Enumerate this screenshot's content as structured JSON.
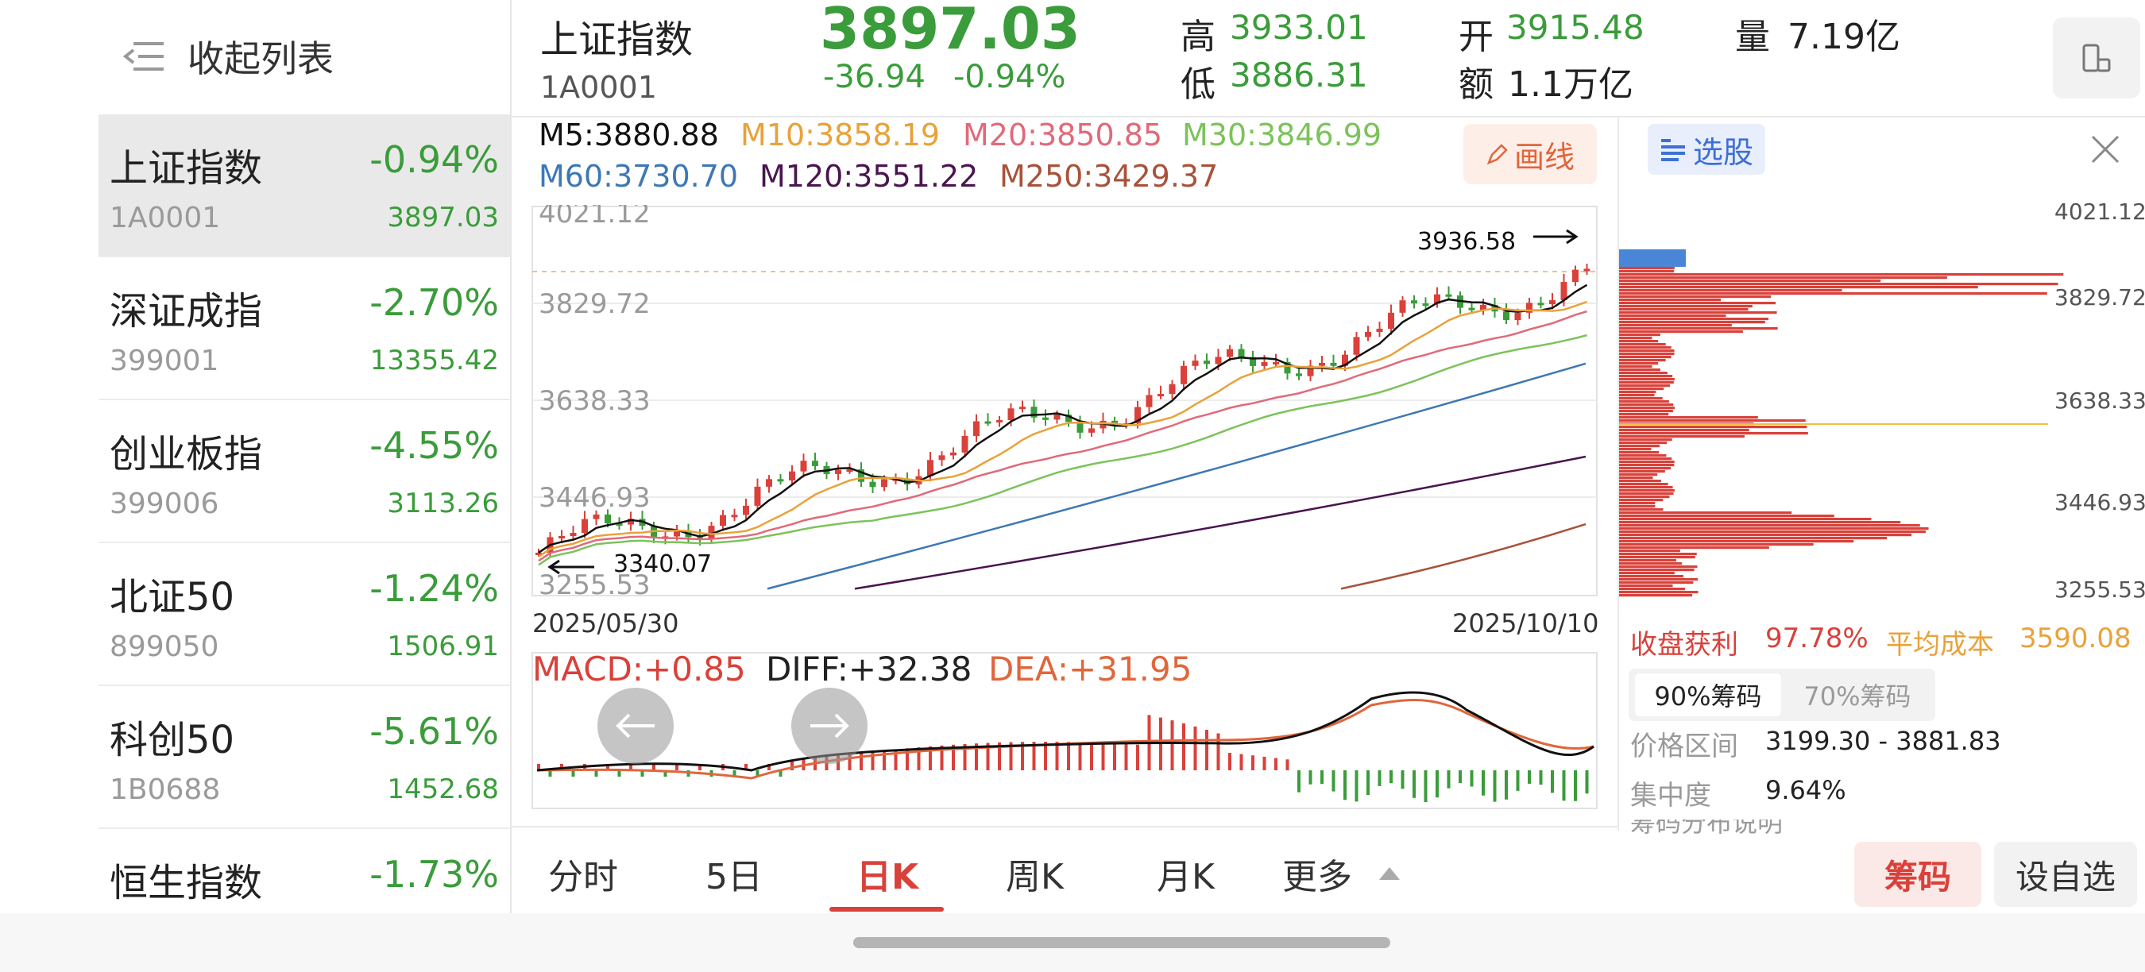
{
  "sidebar": {
    "collapse_label": "收起列表",
    "items": [
      {
        "name": "上证指数",
        "code": "1A0001",
        "pct": "-0.94%",
        "price": "3897.03"
      },
      {
        "name": "深证成指",
        "code": "399001",
        "pct": "-2.70%",
        "price": "13355.42"
      },
      {
        "name": "创业板指",
        "code": "399006",
        "pct": "-4.55%",
        "price": "3113.26"
      },
      {
        "name": "北证50",
        "code": "899050",
        "pct": "-1.24%",
        "price": "1506.91"
      },
      {
        "name": "科创50",
        "code": "1B0688",
        "pct": "-5.61%",
        "price": "1452.68"
      },
      {
        "name": "恒生指数",
        "code": "",
        "pct": "-1.73%",
        "price": ""
      }
    ]
  },
  "header": {
    "name": "上证指数",
    "code": "1A0001",
    "price": "3897.03",
    "change": "-36.94",
    "change_pct": "-0.94%",
    "high_label": "高",
    "high": "3933.01",
    "low_label": "低",
    "low": "3886.31",
    "open_label": "开",
    "open": "3915.48",
    "amount_label": "额",
    "amount": "1.1万亿",
    "volume_label": "量",
    "volume": "7.19亿"
  },
  "ma": {
    "m5": "M5:3880.88",
    "m10": "M10:3858.19",
    "m20": "M20:3850.85",
    "m30": "M30:3846.99",
    "m60": "M60:3730.70",
    "m120": "M120:3551.22",
    "m250": "M250:3429.37"
  },
  "draw_button": "画线",
  "kline": {
    "y_labels": [
      "4021.12",
      "3829.72",
      "3638.33",
      "3446.93",
      "3255.53"
    ],
    "date_start": "2025/05/30",
    "date_end": "2025/10/10",
    "max_mark": "3936.58",
    "min_mark": "3340.07"
  },
  "macd": {
    "macd": "MACD:+0.85",
    "diff": "DIFF:+32.38",
    "dea": "DEA:+31.95"
  },
  "tabs": [
    "分时",
    "5日",
    "日K",
    "周K",
    "月K",
    "更多"
  ],
  "active_tab": "日K",
  "right_panel": {
    "pick_label": "选股",
    "y_labels": [
      "4021.12",
      "3829.72",
      "3638.33",
      "3446.93",
      "3255.53"
    ],
    "profit_label": "收盘获利",
    "profit": "97.78%",
    "avg_cost_label": "平均成本",
    "avg_cost": "3590.08",
    "chip90": "90%筹码",
    "chip70": "70%筹码",
    "range_label": "价格区间",
    "range": "3199.30 - 3881.83",
    "conc_label": "集中度",
    "conc": "9.64%",
    "note": "筹码分布说明"
  },
  "buttons": {
    "chips": "筹码",
    "watch": "设自选"
  },
  "colors": {
    "up": "#d9413a",
    "down": "#3a9c3a",
    "m5": "#111111",
    "m10": "#e8a23a",
    "m20": "#e06a7a",
    "m30": "#7cc35a",
    "m60": "#3d78b5",
    "m120": "#4a1450",
    "m250": "#a8523a"
  }
}
